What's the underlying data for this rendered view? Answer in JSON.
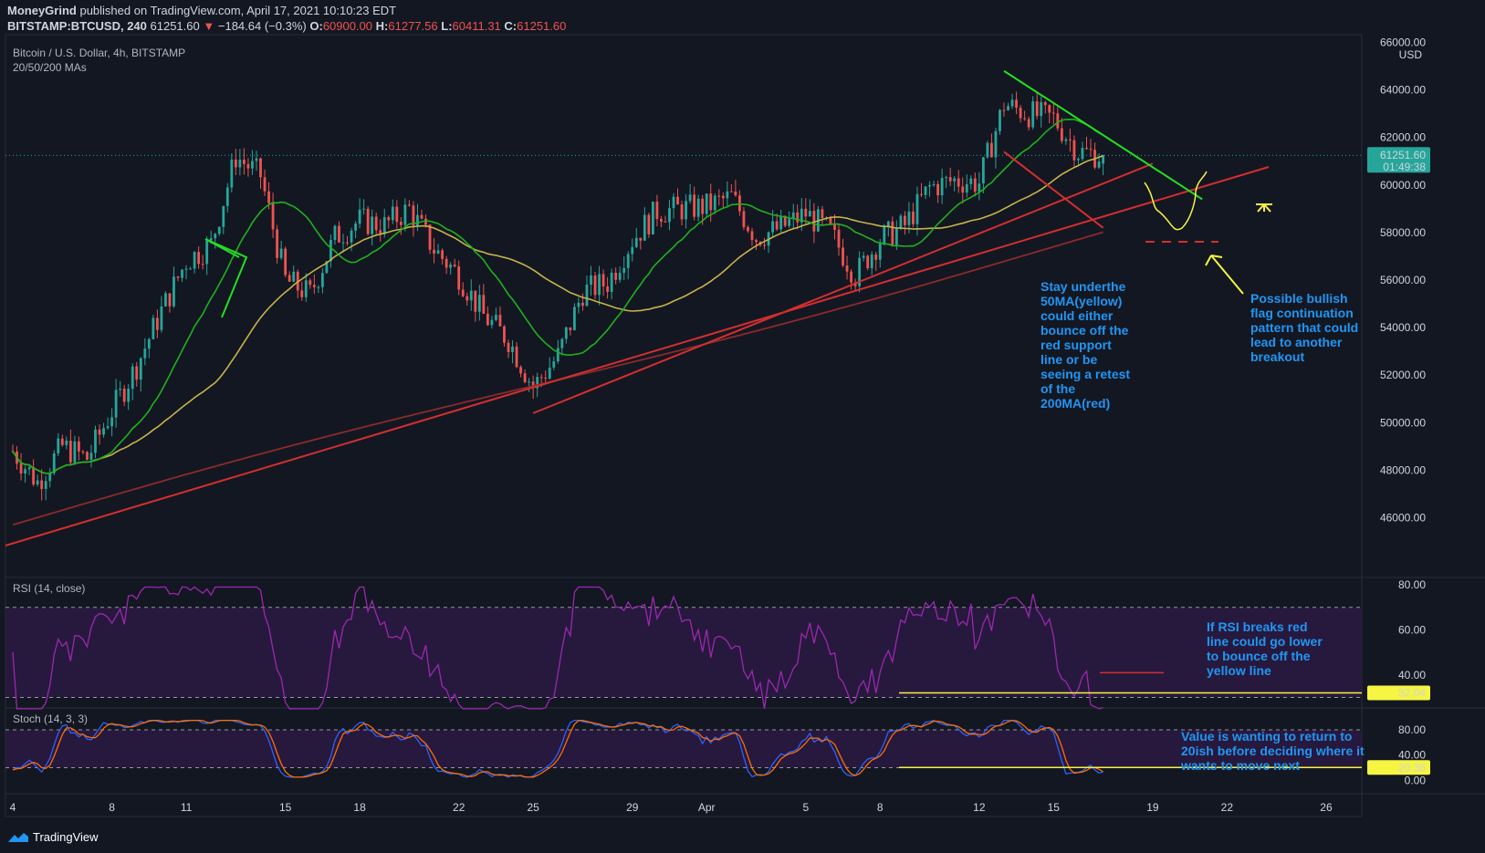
{
  "header": {
    "author": "MoneyGrind",
    "published": "published on TradingView.com, April 17, 2021 10:10:23 EDT",
    "symbol": "BITSTAMP:BTCUSD, 240",
    "last": "61251.60",
    "change": "−184.64 (−0.3%)",
    "o_label": "O:",
    "o_value": "60900.00",
    "h_label": "H:",
    "h_value": "61277.56",
    "l_label": "L:",
    "l_value": "60411.31",
    "c_label": "C:",
    "c_value": "61251.60"
  },
  "footer": {
    "brand": "TradingView"
  },
  "colors": {
    "background": "#131722",
    "up": "#26a69a",
    "down": "#ef5350",
    "ma20": "#1fb11f",
    "ma50": "#c8b24a",
    "ma200": "#8b2a2a",
    "trend_red": "#d32f2f",
    "trend_green": "#22e022",
    "rsi": "#9c27b0",
    "stoch_k": "#2962ff",
    "stoch_d": "#ff6d00",
    "annotation_blue": "#2196f3",
    "annotation_yellow": "#f5f542"
  },
  "chart_data": [
    {
      "type": "candlestick",
      "title": "Bitcoin / U.S. Dollar, 4h, BITSTAMP",
      "subtitle": "20/50/200 MAs",
      "currency": "USD",
      "ylim": [
        44500,
        66000
      ],
      "y_ticks": [
        "46000.00",
        "48000.00",
        "50000.00",
        "52000.00",
        "54000.00",
        "56000.00",
        "58000.00",
        "60000.00",
        "62000.00",
        "64000.00",
        "66000.00"
      ],
      "x_ticks": [
        "4",
        "8",
        "11",
        "15",
        "18",
        "22",
        "25",
        "29",
        "Apr",
        "5",
        "8",
        "12",
        "15",
        "19",
        "22",
        "26"
      ],
      "last_price_label": "61251.60",
      "countdown_label": "01:49:38",
      "close_path": [
        [
          "Mar 4",
          48800
        ],
        [
          "Mar 5",
          47500
        ],
        [
          "Mar 6",
          49000
        ],
        [
          "Mar 7",
          48500
        ],
        [
          "Mar 8",
          50500
        ],
        [
          "Mar 9",
          52400
        ],
        [
          "Mar 10",
          54700
        ],
        [
          "Mar 11",
          56800
        ],
        [
          "Mar 12",
          57500
        ],
        [
          "Mar 13",
          61200
        ],
        [
          "Mar 14",
          60400
        ],
        [
          "Mar 15",
          56000
        ],
        [
          "Mar 16",
          55400
        ],
        [
          "Mar 17",
          57800
        ],
        [
          "Mar 18",
          58500
        ],
        [
          "Mar 19",
          58300
        ],
        [
          "Mar 20",
          59000
        ],
        [
          "Mar 21",
          57300
        ],
        [
          "Mar 22",
          56200
        ],
        [
          "Mar 23",
          54500
        ],
        [
          "Mar 24",
          53500
        ],
        [
          "Mar 25",
          51500
        ],
        [
          "Mar 26",
          52800
        ],
        [
          "Mar 27",
          55500
        ],
        [
          "Mar 28",
          55900
        ],
        [
          "Mar 29",
          57700
        ],
        [
          "Mar 30",
          58900
        ],
        [
          "Mar 31",
          59000
        ],
        [
          "Apr 1",
          59100
        ],
        [
          "Apr 2",
          59500
        ],
        [
          "Apr 3",
          57800
        ],
        [
          "Apr 4",
          58200
        ],
        [
          "Apr 5",
          58800
        ],
        [
          "Apr 6",
          58000
        ],
        [
          "Apr 7",
          56200
        ],
        [
          "Apr 8",
          57700
        ],
        [
          "Apr 9",
          58300
        ],
        [
          "Apr 10",
          59900
        ],
        [
          "Apr 11",
          60200
        ],
        [
          "Apr 12",
          60100
        ],
        [
          "Apr 13",
          63400
        ],
        [
          "Apr 14",
          63000
        ],
        [
          "Apr 15",
          62800
        ],
        [
          "Apr 16",
          61400
        ],
        [
          "Apr 17",
          61252
        ]
      ],
      "moving_averages": [
        {
          "name": "MA 20",
          "color": "#1fb11f"
        },
        {
          "name": "MA 50",
          "color": "#c8b24a"
        },
        {
          "name": "MA 200",
          "color": "#8b2a2a"
        }
      ],
      "trendlines": [
        {
          "name": "red support line",
          "from": [
            "Mar 25",
            50400
          ],
          "to": [
            "Apr 19",
            60900
          ]
        },
        {
          "name": "green flag top",
          "from": [
            "Apr 13",
            64800
          ],
          "to": [
            "Apr 21",
            59400
          ]
        },
        {
          "name": "red flag bottom",
          "from": [
            "Apr 13",
            61400
          ],
          "to": [
            "Apr 17",
            58200
          ]
        }
      ],
      "annotations": [
        "Stay underthe 50MA(yellow) could either bounce off the red support line or be seeing a retest of the 200MA(red)",
        "Possible bullish flag continuation pattern that could lead to another breakout"
      ]
    },
    {
      "type": "line",
      "title": "RSI (14, close)",
      "ylim": [
        20,
        80
      ],
      "y_ticks": [
        "80.00",
        "60.00",
        "40.00"
      ],
      "bands": [
        30,
        70
      ],
      "marker_value": "32.04",
      "annotation": "If RSI breaks red line could go lower to bounce off the yellow line"
    },
    {
      "type": "line",
      "title": "Stoch (14, 3, 3)",
      "ylim": [
        0,
        100
      ],
      "y_ticks": [
        "80.00",
        "40.00",
        "0.00"
      ],
      "bands": [
        20,
        80
      ],
      "series": [
        {
          "name": "%K"
        },
        {
          "name": "%D"
        }
      ],
      "marker_value": "20.36",
      "annotation": "Value is wanting to return to 20ish before deciding where it wants to move next"
    }
  ]
}
